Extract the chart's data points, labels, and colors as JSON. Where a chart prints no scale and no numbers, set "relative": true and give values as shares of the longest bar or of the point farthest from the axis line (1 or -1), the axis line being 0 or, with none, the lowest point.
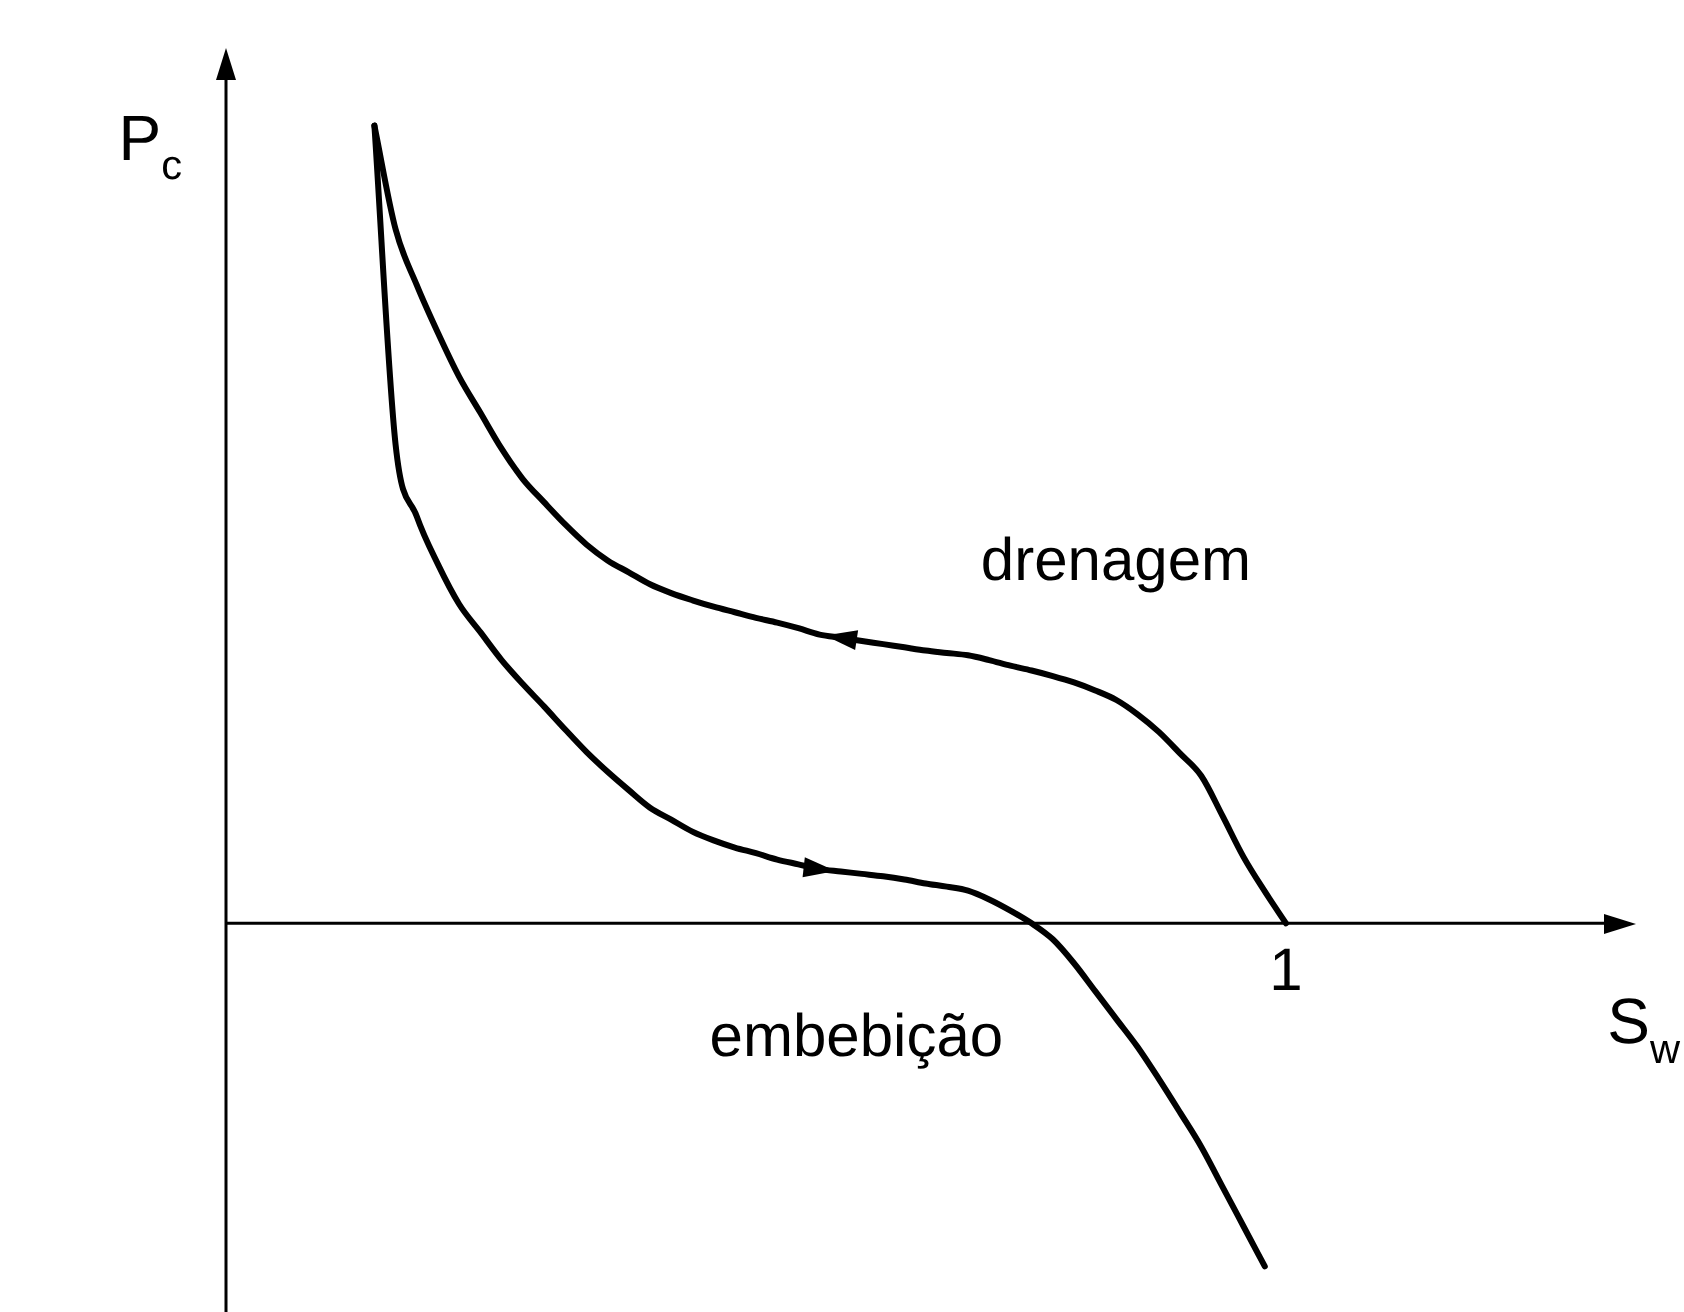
{
  "chart_data": {
    "type": "line",
    "relative": true,
    "xlabel": "S$_{w}$",
    "ylabel": "P$_{c}$",
    "annotations": [
      "1"
    ],
    "grid": false,
    "legend": false,
    "marker": "none",
    "line_style": "solid",
    "categories": [
      null,
      null,
      null,
      null,
      null,
      null,
      null,
      null,
      null,
      null,
      null,
      null,
      null,
      null,
      null,
      null,
      null,
      null,
      null,
      null,
      null,
      null,
      null,
      null,
      null,
      null,
      null,
      null,
      null,
      null,
      null,
      null,
      null,
      null,
      null,
      null,
      null,
      null,
      null,
      null,
      null,
      null,
      null,
      null,
      null,
      null,
      null,
      null,
      null,
      null,
      null,
      null,
      null,
      null,
      null,
      null,
      null,
      null,
      null,
      null,
      null,
      null,
      null,
      null,
      null,
      null
    ],
    "series": [
      {
        "name": "drenagem",
        "color": "#000000",
        "values": [
          null,
          null,
          null,
          null,
          null,
          null,
          null,
          1.0,
          0.87,
          0.8,
          0.74,
          0.685,
          0.64,
          0.595,
          0.557,
          0.528,
          0.5,
          0.475,
          0.455,
          0.44,
          0.425,
          0.414,
          0.405,
          0.397,
          0.39,
          0.383,
          0.377,
          0.37,
          0.362,
          0.358,
          0.354,
          0.35,
          0.346,
          0.342,
          0.339,
          0.336,
          0.33,
          0.323,
          0.317,
          0.31,
          0.302,
          0.292,
          0.28,
          0.262,
          0.24,
          0.213,
          0.185,
          0.135,
          0.083,
          0.04,
          0,
          null,
          null,
          null,
          null,
          null,
          null,
          null,
          null,
          null,
          null,
          null,
          null,
          null,
          null,
          null
        ]
      },
      {
        "name": "embebição",
        "color": "#000000",
        "values": [
          null,
          null,
          null,
          null,
          null,
          null,
          null,
          1.0,
          0.6,
          0.51,
          0.45,
          0.4,
          0.365,
          0.33,
          0.3,
          0.272,
          0.243,
          0.215,
          0.19,
          0.167,
          0.145,
          0.13,
          0.115,
          0.104,
          0.095,
          0.088,
          0.08,
          0.074,
          0.068,
          0.065,
          0.062,
          0.059,
          0.055,
          0.05,
          0.046,
          0.041,
          0.03,
          0.016,
          0,
          -0.02,
          -0.05,
          -0.085,
          -0.12,
          -0.155,
          -0.195,
          -0.237,
          -0.28,
          -0.33,
          -0.38,
          -0.43,
          null,
          null,
          null,
          null,
          null,
          null,
          null,
          null,
          null,
          null,
          null,
          null,
          null,
          null,
          null,
          null
        ]
      }
    ]
  }
}
